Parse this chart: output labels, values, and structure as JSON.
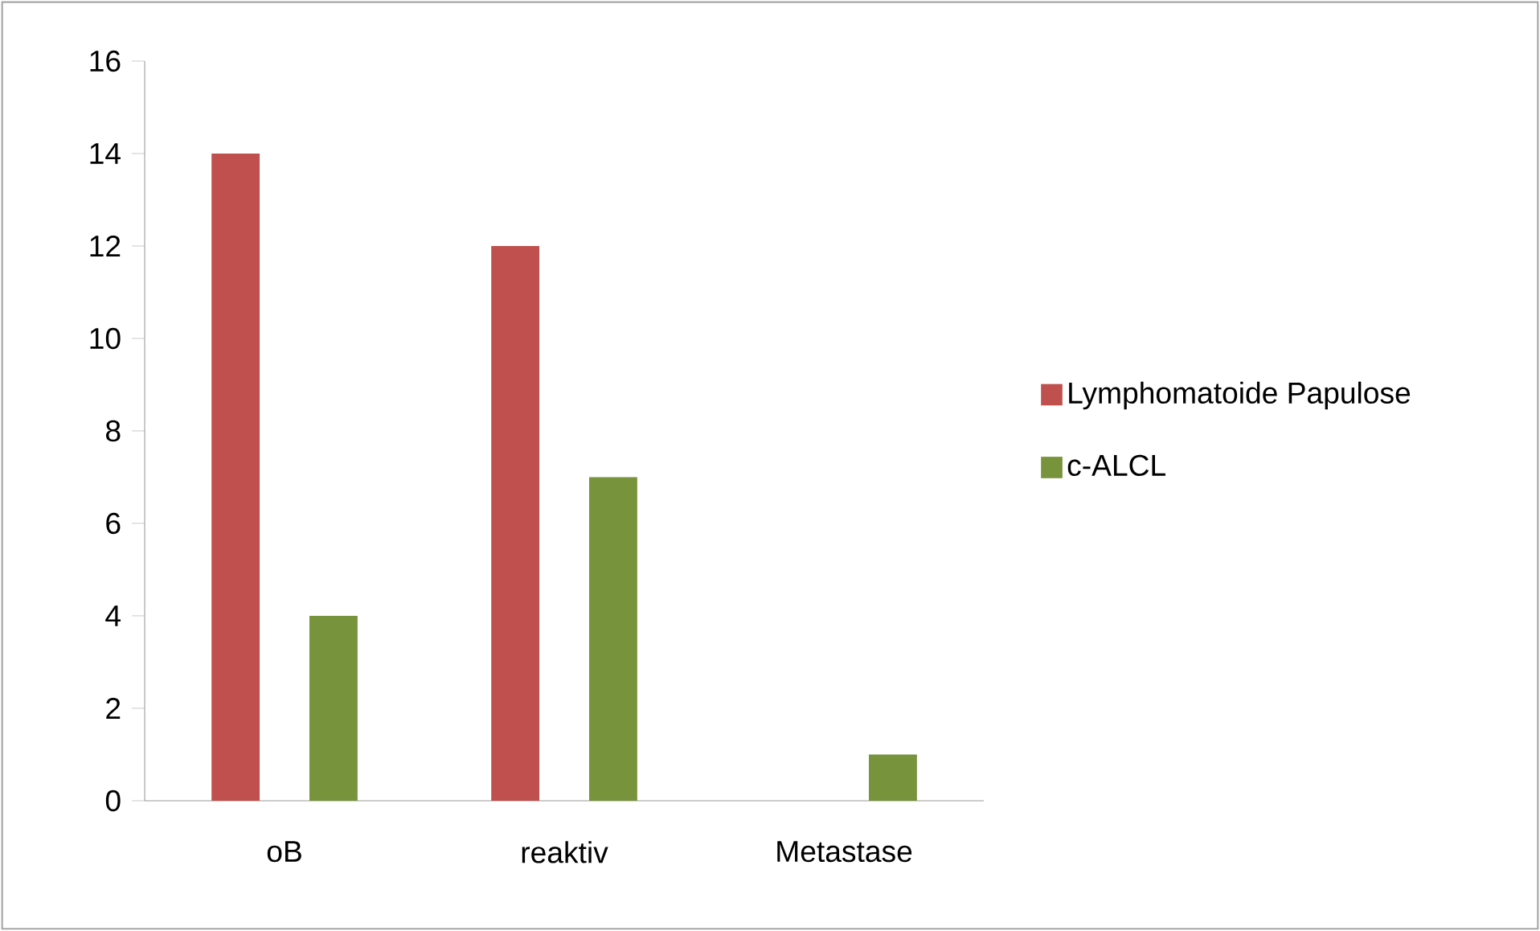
{
  "chart_data": {
    "type": "bar",
    "categories": [
      "oB",
      "reaktiv",
      "Metastase"
    ],
    "series": [
      {
        "name": "Lymphomatoide Papulose",
        "color": "#c0504d",
        "values": [
          14,
          12,
          0
        ]
      },
      {
        "name": "c-ALCL",
        "color": "#77933c",
        "values": [
          4,
          7,
          1
        ]
      }
    ],
    "ylim": [
      0,
      16
    ],
    "yticks": [
      0,
      2,
      4,
      6,
      8,
      10,
      12,
      14,
      16
    ],
    "legend": "right"
  }
}
